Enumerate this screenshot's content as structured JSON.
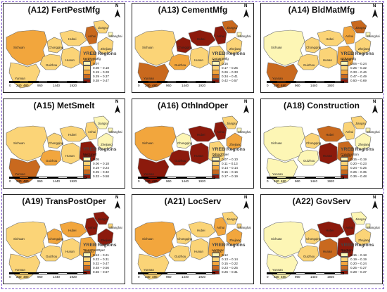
{
  "legend_title": "YREB Regions",
  "scale_ticks": [
    "0",
    "240",
    "480",
    "960",
    "1440",
    "1920"
  ],
  "north_label": "N",
  "provinces": [
    "Sichuan",
    "Chongqing",
    "Guizhou",
    "Yunnan",
    "Hubei",
    "Hunan",
    "Jiangxi",
    "Anhui",
    "Jiangsu",
    "Zhejiang",
    "Shanghai"
  ],
  "palette": [
    "#fdf6b5",
    "#fbd477",
    "#f2a63d",
    "#c9691e",
    "#8c1a0c"
  ],
  "panels": [
    {
      "title": "(A12) FertPestMfg",
      "var": "FertPestMfg",
      "ranges": [
        "0.07",
        "0.08 – 0.18",
        "0.19 – 0.28",
        "0.29 – 0.37",
        "0.38 – 0.47"
      ],
      "levels": [
        2,
        1,
        1,
        1,
        1,
        1,
        2,
        3,
        1,
        1,
        0
      ]
    },
    {
      "title": "(A13) CementMfg",
      "var": "CementMfg",
      "ranges": [
        "0.16",
        "0.17 – 0.25",
        "0.26 – 0.33",
        "0.34 – 0.41",
        "0.42 – 0.57"
      ],
      "levels": [
        1,
        4,
        2,
        3,
        4,
        1,
        1,
        4,
        3,
        1,
        0
      ]
    },
    {
      "title": "(A14) BldMatMfg",
      "var": "BldMatMfg",
      "ranges": [
        "0.06 – 0.24",
        "0.25 – 0.32",
        "0.33 – 0.46",
        "0.47 – 0.49",
        "0.50 – 0.69"
      ],
      "levels": [
        0,
        1,
        1,
        3,
        1,
        1,
        2,
        2,
        3,
        1,
        0
      ]
    },
    {
      "title": "(A15) MetSmelt",
      "var": "MetSmelt",
      "ranges": [
        "0.05",
        "0.06 – 0.18",
        "0.19 – 0.24",
        "0.25 – 0.32",
        "0.33 – 0.58"
      ],
      "levels": [
        1,
        1,
        2,
        3,
        1,
        1,
        4,
        1,
        0,
        0,
        0
      ]
    },
    {
      "title": "(A16) OthIndOper",
      "var": "OthIndOper",
      "ranges": [
        "0.07 – 0.10",
        "0.11 – 0.13",
        "0.14 – 0.14",
        "0.15 – 0.16",
        "0.17 – 0.19"
      ],
      "levels": [
        2,
        0,
        4,
        4,
        4,
        4,
        1,
        4,
        1,
        2,
        0
      ]
    },
    {
      "title": "(A18) Construction",
      "var": "Construction",
      "ranges": [
        "0.15 – 0.19",
        "0.20 – 0.23",
        "0.24 – 0.25",
        "0.26 – 0.35",
        "0.36 – 0.48"
      ],
      "levels": [
        0,
        1,
        0,
        0,
        3,
        4,
        3,
        1,
        1,
        0,
        0
      ]
    },
    {
      "title": "(A19) TransPostOper",
      "var": "TransPostOper",
      "ranges": [
        "0.13 – 0.21",
        "0.22 – 0.31",
        "0.32 – 0.47",
        "0.48 – 0.56",
        "0.56 – 0.67"
      ],
      "levels": [
        1,
        2,
        1,
        1,
        2,
        1,
        2,
        4,
        4,
        4,
        1
      ]
    },
    {
      "title": "(A21) LocServ",
      "var": "LocServ",
      "ranges": [
        "0.12",
        "0.13 – 0.14",
        "0.15 – 0.22",
        "0.23 – 0.25",
        "0.26 – 0.31"
      ],
      "levels": [
        2,
        1,
        1,
        1,
        1,
        1,
        2,
        2,
        1,
        2,
        1
      ]
    },
    {
      "title": "(A22) GovServ",
      "var": "GovServ",
      "ranges": [
        "0.15 – 0.18",
        "0.19 – 0.19",
        "0.20 – 0.24",
        "0.25 – 0.27",
        "0.28 – 0.37"
      ],
      "levels": [
        0,
        1,
        1,
        0,
        4,
        3,
        4,
        4,
        0,
        1,
        0
      ]
    }
  ]
}
